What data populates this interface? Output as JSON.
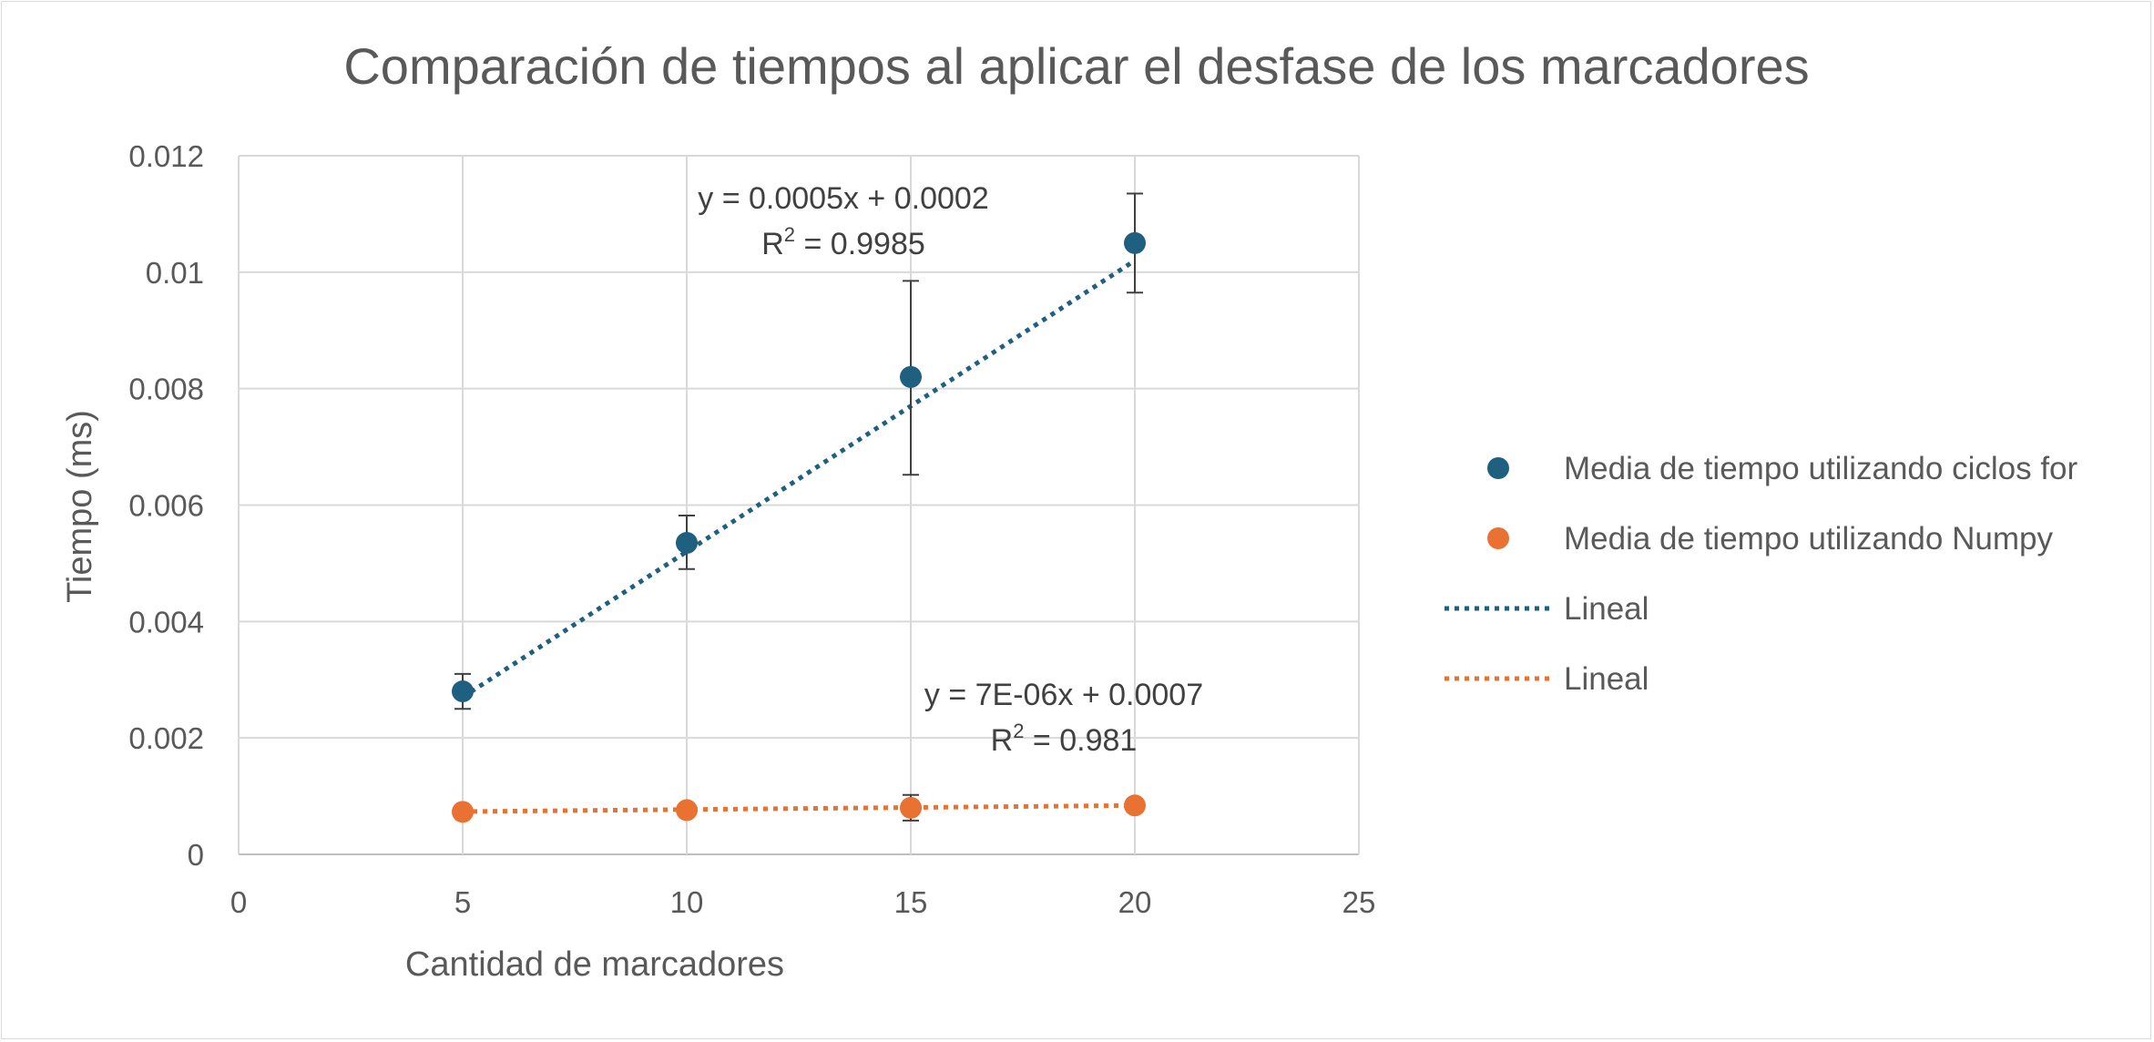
{
  "chart_data": {
    "type": "scatter",
    "title": "Comparación de tiempos al aplicar el desfase de los marcadores",
    "xlabel": "Cantidad de marcadores",
    "ylabel": "Tiempo (ms)",
    "xlim": [
      0,
      25
    ],
    "ylim": [
      0,
      0.012
    ],
    "xticks": [
      "0",
      "5",
      "10",
      "15",
      "20",
      "25"
    ],
    "yticks": [
      "0",
      "0.002",
      "0.004",
      "0.006",
      "0.008",
      "0.01",
      "0.012"
    ],
    "grid": true,
    "legend_position": "right",
    "series": [
      {
        "name": "Media de tiempo utilizando ciclos for",
        "color": "#1f5f7f",
        "x": [
          5,
          10,
          15,
          20
        ],
        "y": [
          0.0028,
          0.00535,
          0.0082,
          0.0105
        ],
        "error_low": [
          0.0025,
          0.0049,
          0.00652,
          0.00965
        ],
        "error_high": [
          0.0031,
          0.00582,
          0.00985,
          0.01135
        ],
        "trendline": {
          "name": "Lineal",
          "slope": 0.0005,
          "intercept": 0.0002,
          "equation": "y = 0.0005x + 0.0002",
          "r2_label": "R",
          "r2_sup": "2",
          "r2_value": " = 0.9985"
        }
      },
      {
        "name": "Media de tiempo utilizando Numpy",
        "color": "#e97132",
        "x": [
          5,
          10,
          15,
          20
        ],
        "y": [
          0.00073,
          0.00076,
          0.0008,
          0.00084
        ],
        "error_low": [
          0.00067,
          0.00069,
          0.00058,
          0.00073
        ],
        "error_high": [
          0.00079,
          0.00083,
          0.00102,
          0.00095
        ],
        "trendline": {
          "name": "Lineal",
          "slope": 7e-06,
          "intercept": 0.0007,
          "equation": "y = 7E-06x + 0.0007",
          "r2_label": "R",
          "r2_sup": "2",
          "r2_value": " = 0.981"
        }
      }
    ]
  }
}
